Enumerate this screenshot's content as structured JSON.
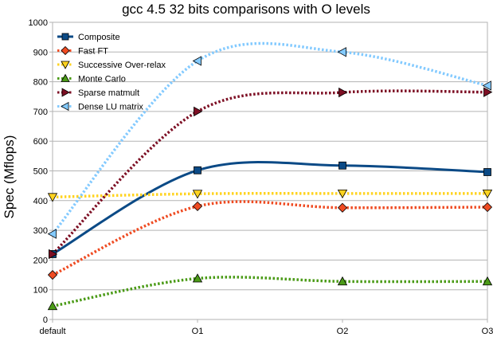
{
  "chart_data": {
    "type": "line",
    "title": "gcc 4.5  32 bits comparisons with O levels",
    "xlabel": "",
    "ylabel": "Spec (Mflops)",
    "categories": [
      "default",
      "O1",
      "O2",
      "O3"
    ],
    "ylim": [
      0,
      1000
    ],
    "yticks": [
      0,
      100,
      200,
      300,
      400,
      500,
      600,
      700,
      800,
      900,
      1000
    ],
    "grid": true,
    "smooth": true,
    "legend_position": "top-left",
    "series": [
      {
        "name": "Composite",
        "values": [
          220,
          502,
          518,
          496
        ],
        "color": "#0b4a86",
        "dash": "solid",
        "marker": "square"
      },
      {
        "name": "Fast FT",
        "values": [
          150,
          381,
          376,
          378
        ],
        "color": "#ef4b22",
        "dash": "dotted",
        "marker": "diamond"
      },
      {
        "name": "Successive Over-relax",
        "values": [
          412,
          423,
          424,
          424
        ],
        "color": "#ffd320",
        "dash": "dotted",
        "marker": "triangle-down"
      },
      {
        "name": "Monte Carlo",
        "values": [
          45,
          138,
          128,
          128
        ],
        "color": "#4b9b17",
        "dash": "dotted",
        "marker": "triangle-up"
      },
      {
        "name": "Sparse matmult",
        "values": [
          220,
          700,
          764,
          765
        ],
        "color": "#7d0f24",
        "dash": "dotted",
        "marker": "triangle-right"
      },
      {
        "name": "Dense LU matrix",
        "values": [
          288,
          870,
          900,
          787
        ],
        "color": "#83caff",
        "dash": "dotted",
        "marker": "triangle-left"
      }
    ]
  }
}
